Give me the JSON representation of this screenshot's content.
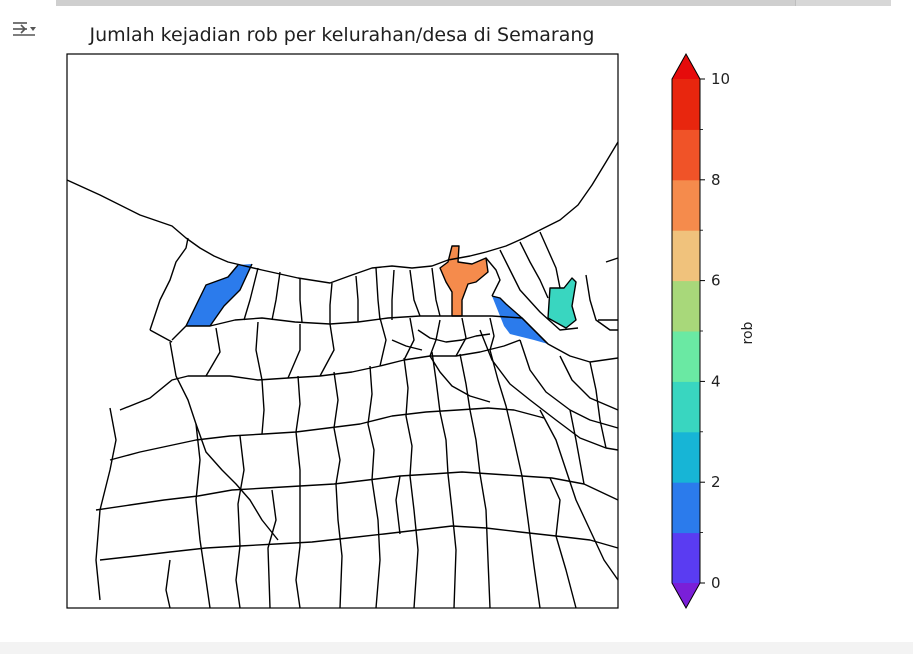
{
  "notebook": {
    "output_toggle_icon": "output-collapse-icon"
  },
  "map": {
    "title": "Jumlah kejadian rob per kelurahan/desa di Semarang",
    "region": "Semarang",
    "boundary_color": "#000000",
    "unaffected_fill": "#ffffff",
    "highlighted_areas": [
      {
        "name": "area-west-coastal-strip",
        "rob": 2,
        "color": "#2b7bec"
      },
      {
        "name": "area-central-port",
        "rob": 9,
        "color": "#f58b4c"
      },
      {
        "name": "area-east-strip",
        "rob": 2,
        "color": "#2b7bec"
      },
      {
        "name": "area-far-east",
        "rob": 5,
        "color": "#39d6c0"
      }
    ]
  },
  "colorbar": {
    "label": "rob",
    "min": 0,
    "max": 10,
    "ticks": [
      0,
      2,
      4,
      6,
      8,
      10
    ],
    "tick_labels": [
      "0",
      "2",
      "4",
      "6",
      "8",
      "10"
    ],
    "extend": "both",
    "colors": [
      "#5a3cf2",
      "#2b7bec",
      "#17b5d6",
      "#39d6c0",
      "#6ae9a3",
      "#a8d87a",
      "#f0c27c",
      "#f58b4c",
      "#f05328",
      "#e8260e"
    ],
    "under_color": "#7a1fd8",
    "over_color": "#e60b0b"
  }
}
